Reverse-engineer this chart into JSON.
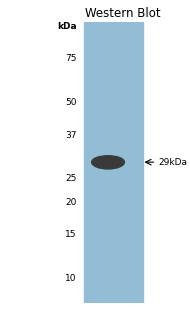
{
  "title": "Western Blot",
  "title_fontsize": 8.5,
  "kda_labels": [
    "kDa",
    "75",
    "50",
    "37",
    "25",
    "20",
    "15",
    "10"
  ],
  "kda_values": [
    100,
    75,
    50,
    37,
    25,
    20,
    15,
    10
  ],
  "band_kda": 29,
  "band_label": "29kDa",
  "gel_color": "#92bdd4",
  "band_color": "#3a3a3a",
  "background_color": "#ffffff",
  "fig_width": 1.9,
  "fig_height": 3.09,
  "dpi": 100,
  "y_min": 8,
  "y_max": 105,
  "label_fontsize": 6.5,
  "band_label_fontsize": 6.5
}
